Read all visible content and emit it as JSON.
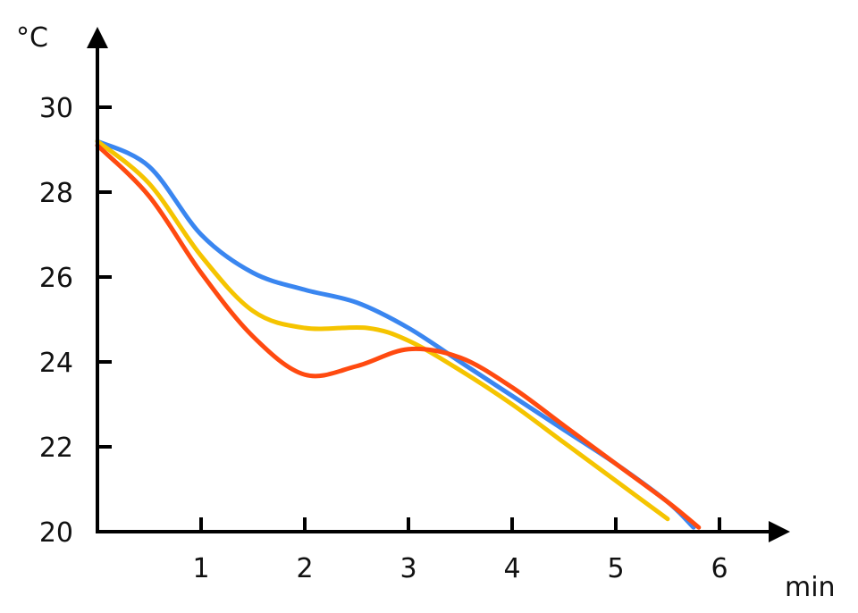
{
  "chart_data": {
    "type": "line",
    "xlabel": "min",
    "ylabel": "°C",
    "xlim": [
      0,
      6.6
    ],
    "ylim": [
      20,
      31.5
    ],
    "x_ticks": [
      1,
      2,
      3,
      4,
      5,
      6
    ],
    "y_ticks": [
      20,
      22,
      24,
      26,
      28,
      30
    ],
    "grid": false,
    "legend": "none",
    "series": [
      {
        "color": "#3A86F0",
        "x": [
          0,
          0.5,
          1,
          1.5,
          2,
          2.5,
          3,
          3.5,
          4,
          4.5,
          5,
          5.5,
          5.75
        ],
        "y": [
          29.2,
          28.6,
          27.0,
          26.1,
          25.7,
          25.4,
          24.8,
          24.0,
          23.2,
          22.4,
          21.6,
          20.7,
          20.1
        ]
      },
      {
        "color": "#F5C400",
        "x": [
          0,
          0.5,
          1,
          1.5,
          2,
          2.6,
          3,
          3.5,
          4,
          4.5,
          5,
          5.5
        ],
        "y": [
          29.2,
          28.2,
          26.5,
          25.2,
          24.8,
          24.8,
          24.5,
          23.8,
          23.0,
          22.1,
          21.2,
          20.3
        ]
      },
      {
        "color": "#FF4A10",
        "x": [
          0,
          0.5,
          1,
          1.5,
          2,
          2.5,
          3,
          3.5,
          4,
          4.5,
          5,
          5.5,
          5.8
        ],
        "y": [
          29.1,
          27.9,
          26.1,
          24.6,
          23.7,
          23.9,
          24.3,
          24.1,
          23.4,
          22.5,
          21.6,
          20.7,
          20.1
        ]
      }
    ]
  }
}
